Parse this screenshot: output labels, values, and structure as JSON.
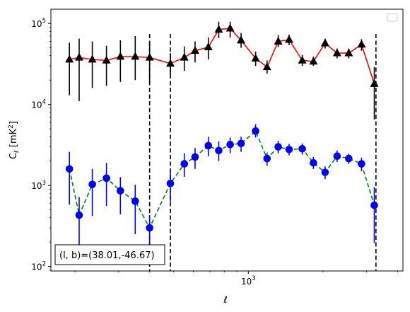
{
  "chart_data": {
    "type": "scatter",
    "xlabel": "ℓ",
    "ylabel": "C_ℓ [mK²]",
    "xscale": "log",
    "yscale": "log",
    "xlim": [
      160,
      4200
    ],
    "ylim": [
      88,
      150000
    ],
    "xticks": [
      {
        "value": 1000,
        "base": "10",
        "exp": "3"
      }
    ],
    "yticks": [
      {
        "value": 100,
        "base": "10",
        "exp": "2"
      },
      {
        "value": 1000,
        "base": "10",
        "exp": "3"
      },
      {
        "value": 10000,
        "base": "10",
        "exp": "4"
      },
      {
        "value": 100000,
        "base": "10",
        "exp": "5"
      }
    ],
    "vlines": [
      400,
      485,
      3270
    ],
    "annotation": "(l, b)=(38.01,-46.67)",
    "legend": "top-right, empty",
    "series": [
      {
        "marker": "triangle",
        "marker_color": "#000000",
        "errorbar_color": "#000000",
        "line_color": "#ff0000",
        "line_style": "solid",
        "points": [
          {
            "x": 190,
            "y": 36000,
            "lo": 13000,
            "hi": 58000
          },
          {
            "x": 208,
            "y": 38000,
            "lo": 11000,
            "hi": 65000
          },
          {
            "x": 235,
            "y": 36000,
            "lo": 16000,
            "hi": 60000
          },
          {
            "x": 268,
            "y": 35000,
            "lo": 17000,
            "hi": 53000
          },
          {
            "x": 305,
            "y": 39000,
            "lo": 19000,
            "hi": 62000
          },
          {
            "x": 350,
            "y": 39000,
            "lo": 20000,
            "hi": 70000
          },
          {
            "x": 400,
            "y": 38000,
            "lo": 18000,
            "hi": 60000
          },
          {
            "x": 485,
            "y": 32000,
            "lo": 23000,
            "hi": 43000
          },
          {
            "x": 552,
            "y": 38000,
            "lo": 26000,
            "hi": 52000
          },
          {
            "x": 610,
            "y": 46000,
            "lo": 33000,
            "hi": 60000
          },
          {
            "x": 690,
            "y": 51000,
            "lo": 36000,
            "hi": 67000
          },
          {
            "x": 760,
            "y": 84000,
            "lo": 66000,
            "hi": 105000
          },
          {
            "x": 845,
            "y": 87000,
            "lo": 67000,
            "hi": 105000
          },
          {
            "x": 935,
            "y": 62000,
            "lo": 50000,
            "hi": 76000
          },
          {
            "x": 1070,
            "y": 37000,
            "lo": 30000,
            "hi": 45000
          },
          {
            "x": 1190,
            "y": 29000,
            "lo": 24000,
            "hi": 35000
          },
          {
            "x": 1320,
            "y": 60000,
            "lo": 51000,
            "hi": 72000
          },
          {
            "x": 1460,
            "y": 63000,
            "lo": 54000,
            "hi": 73000
          },
          {
            "x": 1650,
            "y": 35000,
            "lo": 30000,
            "hi": 41000
          },
          {
            "x": 1830,
            "y": 34000,
            "lo": 30000,
            "hi": 39000
          },
          {
            "x": 2040,
            "y": 57000,
            "lo": 49000,
            "hi": 65000
          },
          {
            "x": 2280,
            "y": 43000,
            "lo": 37000,
            "hi": 49000
          },
          {
            "x": 2540,
            "y": 43000,
            "lo": 37000,
            "hi": 49000
          },
          {
            "x": 2860,
            "y": 55000,
            "lo": 46000,
            "hi": 64000
          },
          {
            "x": 3220,
            "y": 18000,
            "lo": 6500,
            "hi": 29000
          }
        ]
      },
      {
        "marker": "circle",
        "marker_color": "#0000ff",
        "errorbar_color": "#0000ff",
        "line_color": "#008000",
        "line_style": "dashed",
        "points": [
          {
            "x": 190,
            "y": 1600,
            "lo": 580,
            "hi": 2600
          },
          {
            "x": 208,
            "y": 430,
            "lo": 150,
            "hi": 720
          },
          {
            "x": 235,
            "y": 1030,
            "lo": 420,
            "hi": 1600
          },
          {
            "x": 268,
            "y": 1230,
            "lo": 560,
            "hi": 1900
          },
          {
            "x": 305,
            "y": 860,
            "lo": 440,
            "hi": 1270
          },
          {
            "x": 350,
            "y": 640,
            "lo": 250,
            "hi": 1020
          },
          {
            "x": 400,
            "y": 300,
            "lo": 170,
            "hi": 430
          },
          {
            "x": 485,
            "y": 1060,
            "lo": 630,
            "hi": 1500
          },
          {
            "x": 552,
            "y": 1850,
            "lo": 1280,
            "hi": 2500
          },
          {
            "x": 610,
            "y": 2250,
            "lo": 1600,
            "hi": 2900
          },
          {
            "x": 690,
            "y": 3100,
            "lo": 2300,
            "hi": 4000
          },
          {
            "x": 760,
            "y": 2700,
            "lo": 2000,
            "hi": 3500
          },
          {
            "x": 845,
            "y": 3200,
            "lo": 2500,
            "hi": 3900
          },
          {
            "x": 935,
            "y": 3300,
            "lo": 2600,
            "hi": 4000
          },
          {
            "x": 1070,
            "y": 4700,
            "lo": 3900,
            "hi": 5700
          },
          {
            "x": 1190,
            "y": 2150,
            "lo": 1750,
            "hi": 2550
          },
          {
            "x": 1320,
            "y": 3000,
            "lo": 2500,
            "hi": 3550
          },
          {
            "x": 1460,
            "y": 2780,
            "lo": 2350,
            "hi": 3250
          },
          {
            "x": 1650,
            "y": 2840,
            "lo": 2400,
            "hi": 3300
          },
          {
            "x": 1830,
            "y": 1900,
            "lo": 1600,
            "hi": 2250
          },
          {
            "x": 2040,
            "y": 1450,
            "lo": 1200,
            "hi": 1720
          },
          {
            "x": 2280,
            "y": 2300,
            "lo": 1950,
            "hi": 2700
          },
          {
            "x": 2540,
            "y": 2150,
            "lo": 1850,
            "hi": 2450
          },
          {
            "x": 2860,
            "y": 1850,
            "lo": 1500,
            "hi": 2200
          },
          {
            "x": 3220,
            "y": 570,
            "lo": 195,
            "hi": 950
          }
        ]
      }
    ]
  }
}
